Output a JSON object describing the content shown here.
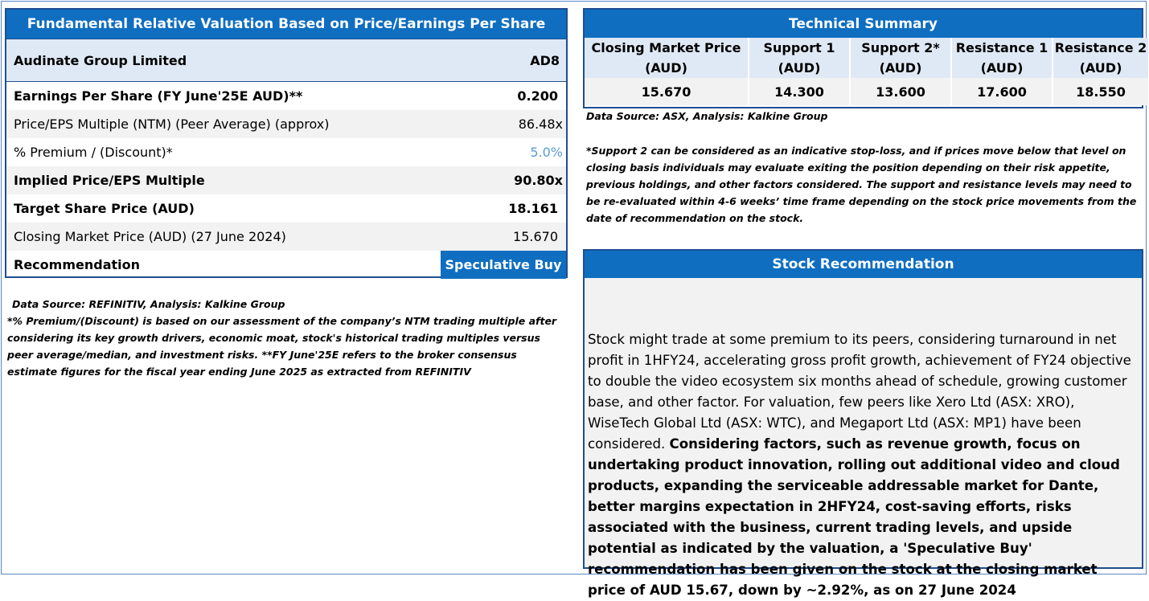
{
  "valuation": {
    "title": "Fundamental Relative Valuation Based on Price/Earnings Per Share",
    "company": "Audinate Group Limited",
    "ticker": "AD8",
    "rows": [
      {
        "label": "Earnings Per Share (FY June'25E AUD)**",
        "value": "0.200"
      },
      {
        "label": "Price/EPS Multiple (NTM) (Peer Average) (approx)",
        "value": "86.48x"
      },
      {
        "label": "% Premium / (Discount)*",
        "value": "5.0%"
      },
      {
        "label": "Implied Price/EPS Multiple",
        "value": "90.80x"
      },
      {
        "label": "Target Share Price (AUD)",
        "value": "18.161"
      },
      {
        "label": "Closing Market Price (AUD) (27 June 2024)",
        "value": "15.670"
      }
    ],
    "recommendation_label": "Recommendation",
    "recommendation_value": "Speculative Buy",
    "source": "Data Source: REFINITIV, Analysis: Kalkine Group",
    "note": "*% Premium/(Discount) is based on our assessment of the company’s NTM trading multiple after considering its key growth drivers, economic moat, stock's historical trading multiples versus peer average/median, and investment risks. **FY June'25E refers to the broker consensus estimate figures for the fiscal year ending June 2025 as extracted from REFINITIV"
  },
  "technical": {
    "title": "Technical Summary",
    "headers": [
      "Closing Market Price (AUD)",
      "Support 1 (AUD)",
      "Support 2* (AUD)",
      "Resistance 1 (AUD)",
      "Resistance 2 (AUD)"
    ],
    "values": [
      "15.670",
      "14.300",
      "13.600",
      "17.600",
      "18.550"
    ],
    "source": "Data Source: ASX, Analysis: Kalkine Group",
    "note": "*Support 2 can be considered as an indicative stop-loss, and if prices move below that level on closing basis individuals may evaluate exiting the position depending on their risk appetite, previous holdings, and other factors considered. The support and resistance levels may need to be re-evaluated within 4-6 weeks’ time frame depending on the stock price movements from the date of recommendation on the stock."
  },
  "stock_recommendation": {
    "title": "Stock Recommendation",
    "text_regular": "Stock might trade at some premium to its peers, considering turnaround in net profit in 1HFY24, accelerating gross profit growth, achievement of FY24 objective to double the video ecosystem six months ahead of schedule, growing customer base, and other factor. For valuation, few peers like Xero Ltd (ASX: XRO), WiseTech Global Ltd (ASX: WTC), and Megaport Ltd (ASX: MP1) have been considered. ",
    "text_bold": "Considering factors, such as revenue growth, focus on undertaking product innovation, rolling out additional video and cloud products, expanding the serviceable addressable market for Dante, better margins expectation in 2HFY24, cost-saving efforts, risks associated with the business, current trading levels, and upside potential as indicated by the valuation, a 'Speculative Buy' recommendation has been given on the stock at the closing market price of AUD 15.67, down by ~2.92%, as on 27 June 2024"
  }
}
